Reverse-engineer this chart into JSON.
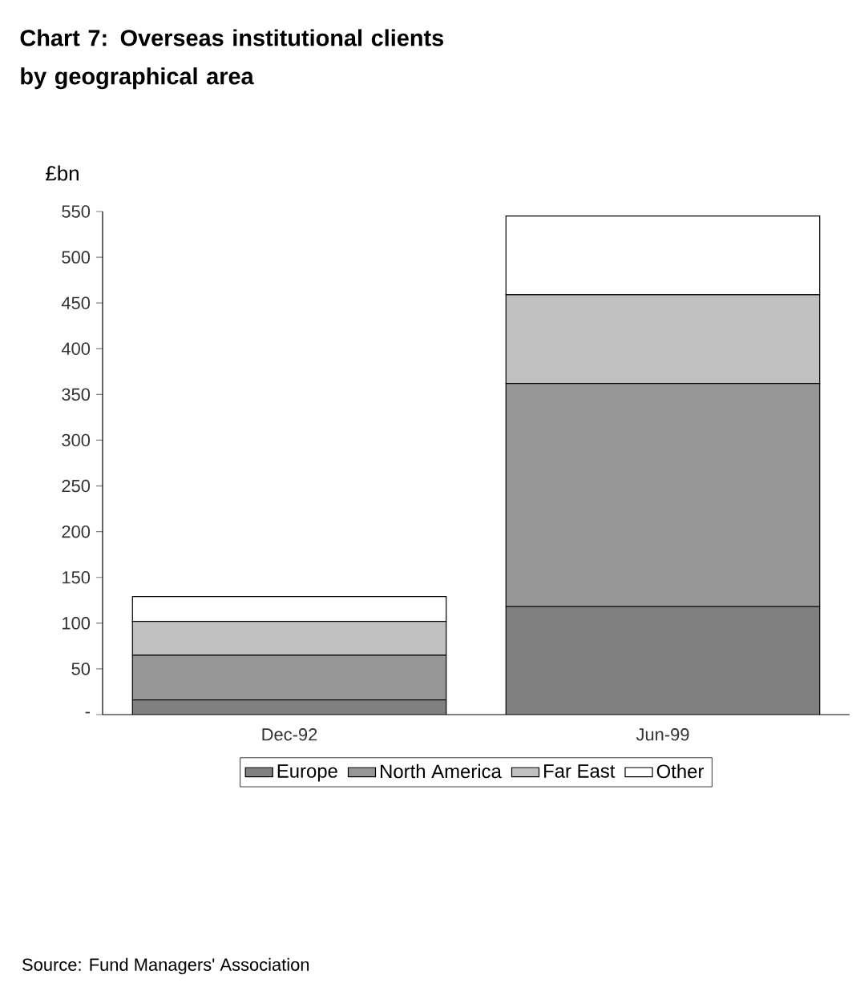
{
  "chart_data": {
    "type": "bar",
    "title": "Chart 7: Overseas institutional clients by geographical area",
    "ylabel": "£bn",
    "categories": [
      "Dec-92",
      "Jun-99"
    ],
    "stacked": true,
    "series": [
      {
        "name": "Europe",
        "color": "#808080",
        "values": [
          16,
          118
        ]
      },
      {
        "name": "North America",
        "color": "#969696",
        "values": [
          49,
          244
        ]
      },
      {
        "name": "Far East",
        "color": "#c0c0c0",
        "values": [
          37,
          97
        ]
      },
      {
        "name": "Other",
        "color": "#ffffff",
        "values": [
          27,
          86
        ]
      }
    ],
    "ylim": [
      0,
      550
    ],
    "yticks": [
      {
        "value": 0,
        "label": "-"
      },
      50,
      100,
      150,
      200,
      250,
      300,
      350,
      400,
      450,
      500,
      550
    ],
    "legend": "bottom",
    "annotations": [
      "Source: Fund Managers' Association"
    ]
  }
}
